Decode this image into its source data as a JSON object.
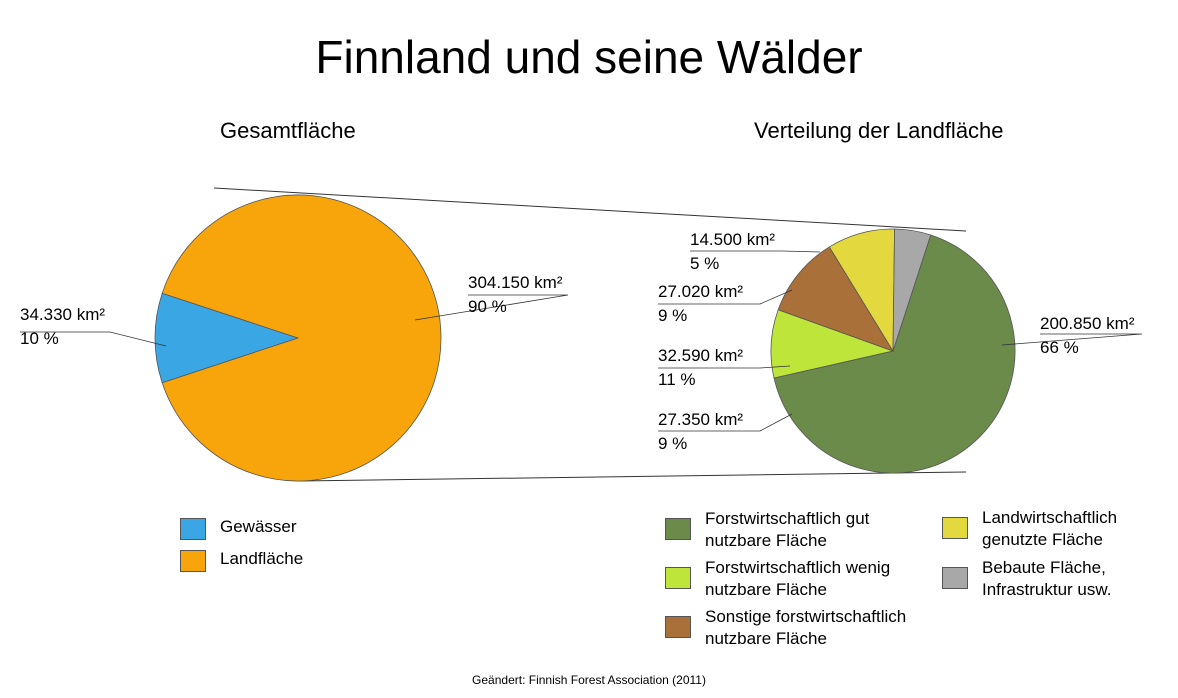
{
  "title": "Finnland und seine Wälder",
  "source": "Geändert: Finnish Forest Association (2011)",
  "chart_data": [
    {
      "type": "pie",
      "title": "Gesamtfläche",
      "slices": [
        {
          "name": "Gewässer",
          "value_km2": "34.330 km²",
          "value": 34330,
          "percent": "10 %",
          "color": "#3aa6e4"
        },
        {
          "name": "Landfläche",
          "value_km2": "304.150 km²",
          "value": 304150,
          "percent": "90 %",
          "color": "#f7a50a"
        }
      ]
    },
    {
      "type": "pie",
      "title": "Verteilung der Landfläche",
      "slices": [
        {
          "name": "Forstwirtschaftlich gut\nnutzbare Fläche",
          "value_km2": "200.850 km²",
          "value": 200850,
          "percent": "66 %",
          "color": "#6b8b4a"
        },
        {
          "name": "Forstwirtschaftlich wenig\nnutzbare Fläche",
          "value_km2": "27.350 km²",
          "value": 27350,
          "percent": "9 %",
          "color": "#bde53a"
        },
        {
          "name": "Sonstige forstwirtschaftlich\nnutzbare Fläche",
          "value_km2": "32.590 km²",
          "value": 32590,
          "percent": "11 %",
          "color": "#a9703a"
        },
        {
          "name": "Landwirtschaftlich\ngenutzte Fläche",
          "value_km2": "27.020 km²",
          "value": 27020,
          "percent": "9 %",
          "color": "#e3d93e"
        },
        {
          "name": "Bebaute Fläche,\nInfrastruktur usw.",
          "value_km2": "14.500 km²",
          "value": 14500,
          "percent": "5 %",
          "color": "#a8a8a8"
        }
      ]
    }
  ]
}
